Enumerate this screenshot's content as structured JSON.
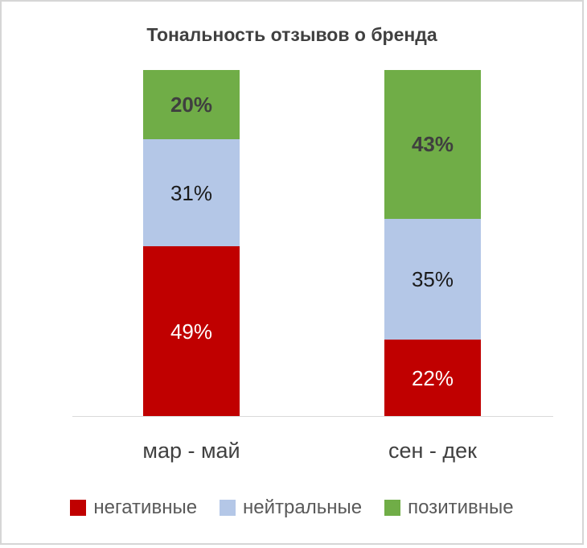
{
  "chart_data": {
    "type": "bar",
    "subtype": "stacked-100-percent",
    "title": "Тональность отзывов о бренда",
    "categories": [
      "мар - май",
      "сен - дек"
    ],
    "series": [
      {
        "id": "negative",
        "name": "негативные",
        "color": "#C00000",
        "label_color": "#FFFFFF",
        "label_bold": false,
        "values": [
          49,
          22
        ]
      },
      {
        "id": "neutral",
        "name": "нейтральные",
        "color": "#B4C7E7",
        "label_color": "#1a1a1a",
        "label_bold": false,
        "values": [
          31,
          35
        ]
      },
      {
        "id": "positive",
        "name": "позитивные",
        "color": "#70AD47",
        "label_color": "#3f3f3f",
        "label_bold": true,
        "values": [
          20,
          43
        ]
      }
    ],
    "value_suffix": "%",
    "stack_order_top_to_bottom": [
      "позитивные",
      "нейтральные",
      "негативные"
    ],
    "legend_position": "bottom",
    "grid": false,
    "axis_line_color": "#d9d9d9",
    "ylim": [
      0,
      100
    ]
  }
}
